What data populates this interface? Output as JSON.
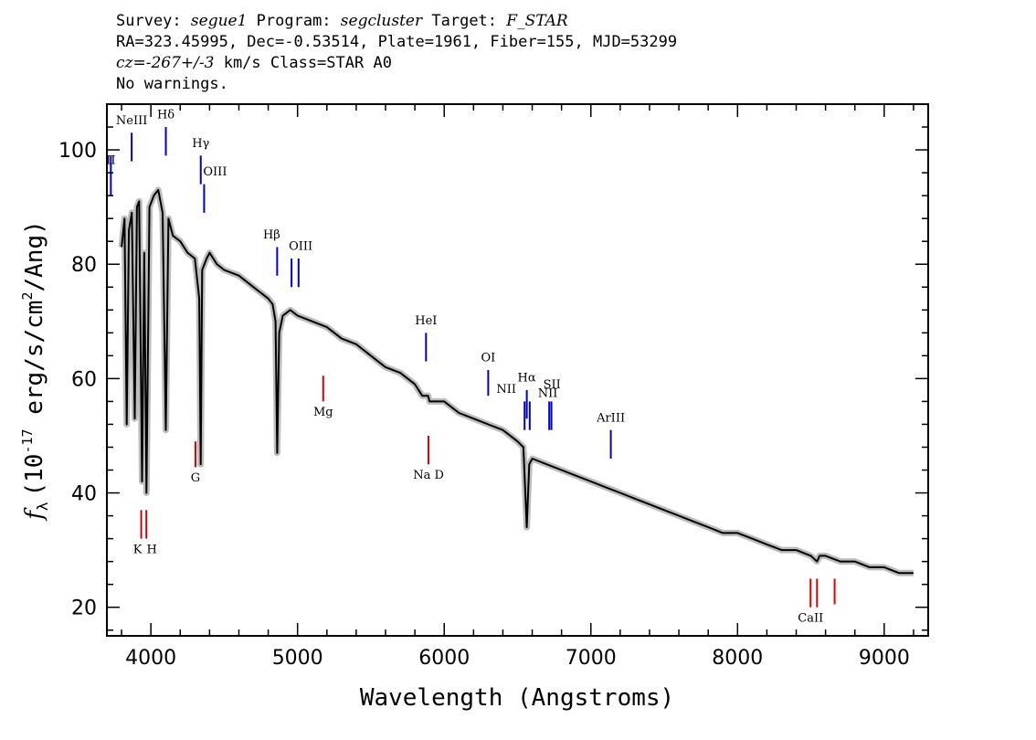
{
  "header": {
    "survey_label": "Survey:",
    "survey": "segue1",
    "program_label": "Program:",
    "program": "segcluster",
    "target_label": "Target:",
    "target": "F_STAR",
    "line2": "RA=323.45995, Dec=-0.53514, Plate=1961, Fiber=155, MJD=53299",
    "cz_label": "cz=",
    "cz": "-267+/-3",
    "cz_rest": " km/s Class=STAR A0",
    "line4": "No warnings."
  },
  "chart_data": {
    "type": "line",
    "xlabel": "Wavelength (Angstroms)",
    "ylabel": "f_λ (10^-17 erg/s/cm^2/Ang)",
    "ylabel_parts": {
      "f": "f",
      "sub": "λ",
      "pre": "(10",
      "exp": "-17",
      "mid": " erg/s/cm",
      "exp2": "2",
      "post": "/Ang)"
    },
    "xlim": [
      3700,
      9300
    ],
    "ylim": [
      15,
      108
    ],
    "x_ticks": [
      4000,
      5000,
      6000,
      7000,
      8000,
      9000
    ],
    "x_tick_labels": [
      "4000",
      "5000",
      "6000",
      "7000",
      "8000",
      "9000"
    ],
    "y_ticks": [
      20,
      40,
      60,
      80,
      100
    ],
    "y_tick_labels": [
      "20",
      "40",
      "60",
      "80",
      "100"
    ],
    "colors": {
      "spectrum": "#000000",
      "error": "#bdbdbd",
      "emission": "#0000cc",
      "absorption": "#dd0000"
    },
    "spectrum": {
      "x": [
        3800,
        3820,
        3835,
        3850,
        3870,
        3890,
        3905,
        3920,
        3940,
        3955,
        3970,
        3990,
        4020,
        4050,
        4080,
        4102,
        4120,
        4150,
        4200,
        4250,
        4300,
        4330,
        4340,
        4350,
        4380,
        4400,
        4450,
        4500,
        4600,
        4700,
        4800,
        4830,
        4850,
        4861,
        4875,
        4900,
        4950,
        5000,
        5100,
        5200,
        5300,
        5400,
        5500,
        5600,
        5700,
        5800,
        5850,
        5890,
        5900,
        6000,
        6100,
        6200,
        6300,
        6400,
        6500,
        6540,
        6563,
        6580,
        6600,
        6700,
        6800,
        6900,
        7000,
        7100,
        7200,
        7300,
        7400,
        7500,
        7600,
        7700,
        7800,
        7900,
        8000,
        8100,
        8200,
        8300,
        8400,
        8500,
        8542,
        8560,
        8600,
        8700,
        8800,
        8900,
        9000,
        9100,
        9200
      ],
      "y": [
        83,
        88,
        52,
        86,
        89,
        53,
        90,
        91,
        42,
        82,
        40,
        90,
        92,
        93,
        89,
        51,
        88,
        85,
        84,
        82,
        81,
        74,
        45,
        79,
        81,
        82,
        80,
        79,
        78,
        76,
        74,
        73,
        70,
        47,
        68,
        71,
        72,
        71,
        70,
        69,
        67,
        66,
        64,
        62,
        61,
        59,
        57,
        57,
        56,
        56,
        54,
        53,
        52,
        51,
        49,
        48,
        34,
        45,
        46,
        45,
        44,
        43,
        42,
        41,
        40,
        39,
        38,
        37,
        36,
        35,
        34,
        33,
        33,
        32,
        31,
        30,
        30,
        29,
        28,
        29,
        29,
        28,
        28,
        27,
        27,
        26,
        26
      ]
    },
    "emission_lines": [
      {
        "label": "II",
        "x": 3727,
        "y0": 92,
        "y1": 99,
        "ly": 97.5,
        "dx": 0
      },
      {
        "label": "NeIII",
        "x": 3869,
        "y0": 98,
        "y1": 103,
        "ly": 104.5,
        "dx": 0
      },
      {
        "label": "Hδ",
        "x": 4102,
        "y0": 99,
        "y1": 104,
        "ly": 105.5,
        "dx": 0
      },
      {
        "label": "Hγ",
        "x": 4340,
        "y0": 94,
        "y1": 99,
        "ly": 100.5,
        "dx": 0
      },
      {
        "label": "OIII",
        "x": 4363,
        "y0": 89,
        "y1": 94,
        "ly": 95.5,
        "dx": 12
      },
      {
        "label": "Hβ",
        "x": 4861,
        "y0": 78,
        "y1": 83,
        "ly": 84.5,
        "dx": -6
      },
      {
        "label": "OIII",
        "x": 4959,
        "y0": 76,
        "y1": 81,
        "ly": 82.5,
        "dx": 10
      },
      {
        "label": "",
        "x": 5007,
        "y0": 76,
        "y1": 81,
        "ly": 0,
        "dx": 0
      },
      {
        "label": "HeI",
        "x": 5876,
        "y0": 63,
        "y1": 68,
        "ly": 69.5,
        "dx": 0
      },
      {
        "label": "OI",
        "x": 6300,
        "y0": 57,
        "y1": 61.5,
        "ly": 63,
        "dx": 0
      },
      {
        "label": "NII",
        "x": 6548,
        "y0": 51,
        "y1": 56,
        "ly": 57.5,
        "dx": -20
      },
      {
        "label": "Hα",
        "x": 6563,
        "y0": 53,
        "y1": 58,
        "ly": 59.5,
        "dx": 0
      },
      {
        "label": "",
        "x": 6583,
        "y0": 51,
        "y1": 56,
        "ly": 0,
        "dx": 0
      },
      {
        "label": "SII",
        "x": 6716,
        "y0": 51,
        "y1": 56,
        "ly": 58.3,
        "dx": 3
      },
      {
        "label": "NII",
        "x": 6731,
        "y0": 51,
        "y1": 56,
        "ly": 56.8,
        "dx": -4
      },
      {
        "label": "ArIII",
        "x": 7136,
        "y0": 46,
        "y1": 51,
        "ly": 52.5,
        "dx": 0
      }
    ],
    "absorption_lines": [
      {
        "label": "Mg",
        "x": 5175,
        "y0": 56,
        "y1": 60.5,
        "ly": 53.5,
        "dx": 0
      },
      {
        "label": "G",
        "x": 4304,
        "y0": 44.5,
        "y1": 49,
        "ly": 42,
        "dx": 0
      },
      {
        "label": "Na D",
        "x": 5893,
        "y0": 45,
        "y1": 50,
        "ly": 42.5,
        "dx": 0
      },
      {
        "label": "K",
        "x": 3934,
        "y0": 32,
        "y1": 37,
        "ly": 29.5,
        "dx": -4
      },
      {
        "label": "H",
        "x": 3969,
        "y0": 32,
        "y1": 37,
        "ly": 29.5,
        "dx": 6
      },
      {
        "label": "CaII",
        "x": 8498,
        "y0": 20,
        "y1": 25,
        "ly": 17.5,
        "dx": 0
      },
      {
        "label": "",
        "x": 8542,
        "y0": 20,
        "y1": 25,
        "ly": 0,
        "dx": 0
      },
      {
        "label": "",
        "x": 8662,
        "y0": 20.5,
        "y1": 25,
        "ly": 0,
        "dx": 0
      }
    ]
  }
}
